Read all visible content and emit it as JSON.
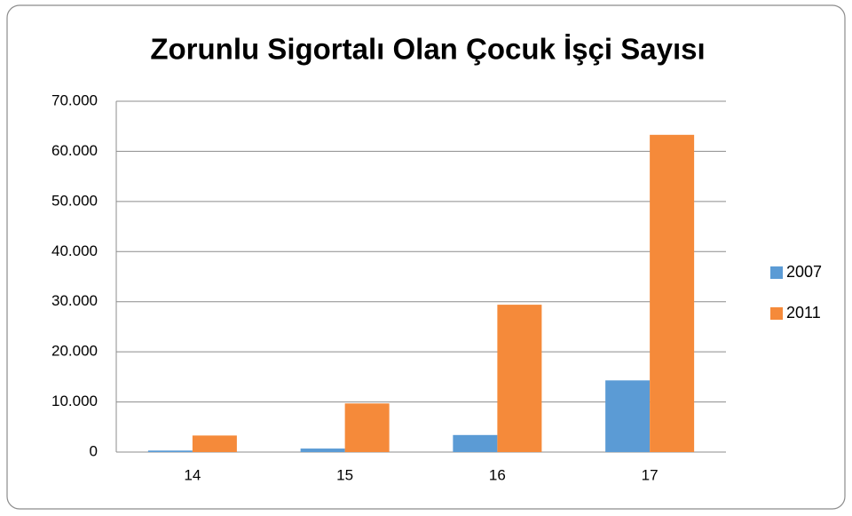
{
  "chart_data": {
    "type": "bar",
    "title": "Zorunlu Sigortalı Olan Çocuk İşçi Sayısı",
    "categories": [
      "14",
      "15",
      "16",
      "17"
    ],
    "series": [
      {
        "name": "2007",
        "color": "#5b9bd5",
        "values": [
          300,
          700,
          3400,
          14300
        ]
      },
      {
        "name": "2011",
        "color": "#f58a3a",
        "values": [
          3300,
          9700,
          29400,
          63300
        ]
      }
    ],
    "ylim": [
      0,
      70000
    ],
    "yticks": [
      0,
      {
        "value": 10000,
        "label": "10.000"
      },
      {
        "value": 20000,
        "label": "20.000"
      },
      {
        "value": 30000,
        "label": "30.000"
      },
      {
        "value": 40000,
        "label": "40.000"
      },
      {
        "value": 50000,
        "label": "50.000"
      },
      {
        "value": 60000,
        "label": "60.000"
      },
      {
        "value": 70000,
        "label": "70.000"
      }
    ],
    "grid": true,
    "legend": "right"
  }
}
